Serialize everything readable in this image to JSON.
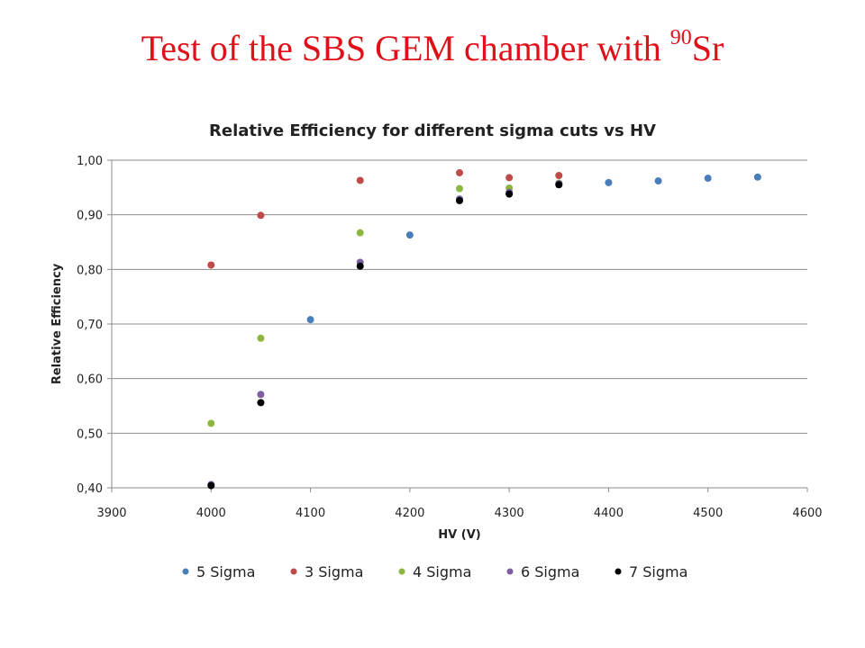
{
  "slide": {
    "title_main": "Test of the SBS GEM chamber with ",
    "title_sup": "90",
    "title_end": "Sr"
  },
  "chart_data": {
    "type": "scatter",
    "title": "Relative Efficiency for different sigma cuts vs HV",
    "xlabel": "HV (V)",
    "ylabel": "Relative Efficiency",
    "xlim": [
      3900,
      4600
    ],
    "ylim": [
      0.4,
      1.0
    ],
    "x_ticks": [
      "3900",
      "4000",
      "4100",
      "4200",
      "4300",
      "4400",
      "4500",
      "4600"
    ],
    "y_ticks": [
      "0,40",
      "0,50",
      "0,60",
      "0,70",
      "0,80",
      "0,90",
      "1,00"
    ],
    "grid": true,
    "legend_position": "bottom",
    "series": [
      {
        "name": "5 Sigma",
        "color": "#4a7ebb",
        "x": [
          4100,
          4200,
          4250,
          4300,
          4350,
          4400,
          4450,
          4500,
          4550
        ],
        "y": [
          0.708,
          0.863,
          0.929,
          0.939,
          0.957,
          0.959,
          0.962,
          0.967,
          0.969
        ]
      },
      {
        "name": "3 Sigma",
        "color": "#be4b48",
        "x": [
          4000,
          4050,
          4150,
          4250,
          4300,
          4350
        ],
        "y": [
          0.808,
          0.899,
          0.963,
          0.977,
          0.968,
          0.972
        ]
      },
      {
        "name": "4 Sigma",
        "color": "#8db640",
        "x": [
          4000,
          4050,
          4150,
          4250,
          4300,
          4350
        ],
        "y": [
          0.518,
          0.674,
          0.867,
          0.948,
          0.949,
          0.958
        ]
      },
      {
        "name": "6 Sigma",
        "color": "#7c5fa0",
        "x": [
          4000,
          4050,
          4150,
          4250,
          4300,
          4350
        ],
        "y": [
          0.406,
          0.571,
          0.813,
          0.928,
          0.941,
          0.957
        ]
      },
      {
        "name": "7 Sigma",
        "color": "#000000",
        "x": [
          4000,
          4050,
          4150,
          4250,
          4300,
          4350
        ],
        "y": [
          0.404,
          0.556,
          0.806,
          0.926,
          0.938,
          0.955
        ]
      }
    ]
  }
}
